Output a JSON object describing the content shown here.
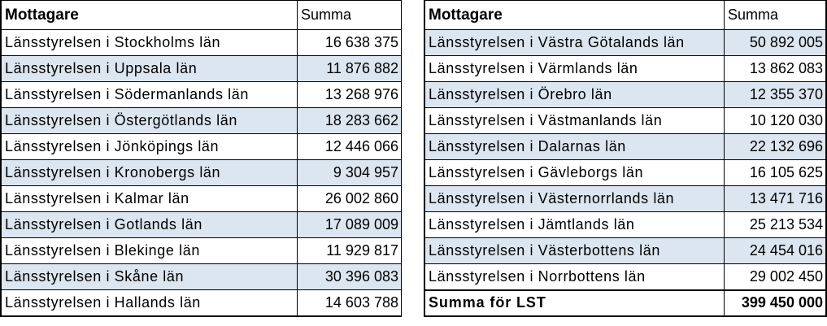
{
  "left_table": {
    "header": {
      "recipient": "Mottagare",
      "amount": "Summa"
    },
    "rows": [
      {
        "recipient": "Länsstyrelsen i Stockholms län",
        "amount": "16 638 375"
      },
      {
        "recipient": "Länsstyrelsen i Uppsala län",
        "amount": "11 876 882"
      },
      {
        "recipient": "Länsstyrelsen i Södermanlands län",
        "amount": "13 268 976"
      },
      {
        "recipient": "Länsstyrelsen i Östergötlands län",
        "amount": "18 283 662"
      },
      {
        "recipient": "Länsstyrelsen i Jönköpings län",
        "amount": "12 446 066"
      },
      {
        "recipient": "Länsstyrelsen i Kronobergs län",
        "amount": "9 304 957"
      },
      {
        "recipient": "Länsstyrelsen i Kalmar län",
        "amount": "26 002 860"
      },
      {
        "recipient": "Länsstyrelsen i Gotlands län",
        "amount": "17 089 009"
      },
      {
        "recipient": "Länsstyrelsen i Blekinge län",
        "amount": "11 929 817"
      },
      {
        "recipient": "Länsstyrelsen i Skåne län",
        "amount": "30 396 083"
      },
      {
        "recipient": "Länsstyrelsen i Hallands län",
        "amount": "14 603 788"
      }
    ]
  },
  "right_table": {
    "header": {
      "recipient": "Mottagare",
      "amount": "Summa"
    },
    "rows": [
      {
        "recipient": "Länsstyrelsen i Västra Götalands län",
        "amount": "50 892 005"
      },
      {
        "recipient": "Länsstyrelsen i Värmlands län",
        "amount": "13 862 083"
      },
      {
        "recipient": "Länsstyrelsen i Örebro län",
        "amount": "12 355 370"
      },
      {
        "recipient": "Länsstyrelsen i Västmanlands län",
        "amount": "10 120 030"
      },
      {
        "recipient": "Länsstyrelsen i Dalarnas län",
        "amount": "22 132 696"
      },
      {
        "recipient": "Länsstyrelsen i Gävleborgs län",
        "amount": "16 105 625"
      },
      {
        "recipient": "Länsstyrelsen i Västernorrlands län",
        "amount": "13 471 716"
      },
      {
        "recipient": "Länsstyrelsen i Jämtlands län",
        "amount": "25 213 534"
      },
      {
        "recipient": "Länsstyrelsen i Västerbottens län",
        "amount": "24 454 016"
      },
      {
        "recipient": "Länsstyrelsen i Norrbottens län",
        "amount": "29 002 450"
      }
    ],
    "total": {
      "label": "Summa för LST",
      "amount": "399 450 000"
    }
  },
  "colors": {
    "alt_row": "#dce6f1",
    "border": "#000000"
  }
}
